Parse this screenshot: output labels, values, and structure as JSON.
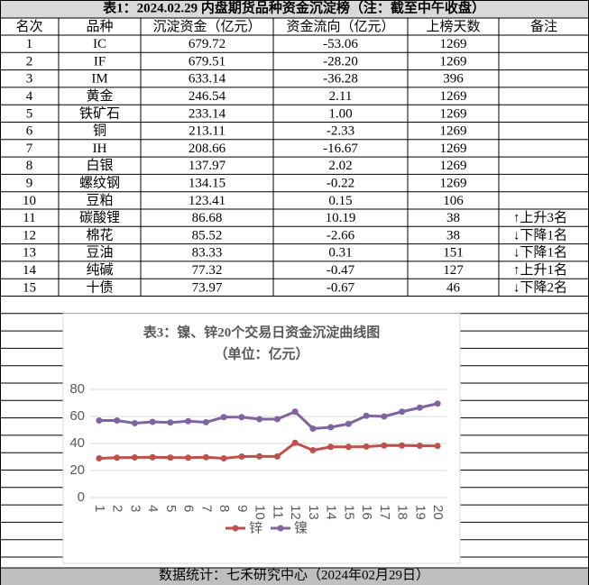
{
  "header": {
    "title": "表1：2024.02.29 内盘期货品种资金沉淀榜（注：截至中午收盘）"
  },
  "table": {
    "columns": [
      "名次",
      "品种",
      "沉淀资金（亿元）",
      "资金流向（亿元）",
      "上榜天数",
      "备注"
    ],
    "rows": [
      [
        "1",
        "IC",
        "679.72",
        "-53.06",
        "1269",
        null
      ],
      [
        "2",
        "IF",
        "679.51",
        "-28.20",
        "1269",
        null
      ],
      [
        "3",
        "IM",
        "633.14",
        "-36.28",
        "396",
        null
      ],
      [
        "4",
        "黄金",
        "246.54",
        "2.11",
        "1269",
        null
      ],
      [
        "5",
        "铁矿石",
        "233.14",
        "1.00",
        "1269",
        null
      ],
      [
        "6",
        "铜",
        "213.11",
        "-2.33",
        "1269",
        null
      ],
      [
        "7",
        "IH",
        "208.66",
        "-16.67",
        "1269",
        null
      ],
      [
        "8",
        "白银",
        "137.97",
        "2.02",
        "1269",
        null
      ],
      [
        "9",
        "螺纹钢",
        "134.15",
        "-0.22",
        "1269",
        null
      ],
      [
        "10",
        "豆粕",
        "123.41",
        "0.15",
        "106",
        null
      ],
      [
        "11",
        "碳酸锂",
        "86.68",
        "10.19",
        "38",
        "↑上升3名"
      ],
      [
        "12",
        "棉花",
        "85.52",
        "-2.66",
        "38",
        "↓下降1名"
      ],
      [
        "13",
        "豆油",
        "83.33",
        "0.31",
        "151",
        "↓下降1名"
      ],
      [
        "14",
        "纯碱",
        "77.32",
        "-0.47",
        "127",
        "↑上升1名"
      ],
      [
        "15",
        "十债",
        "73.97",
        "-0.67",
        "46",
        "↓下降2名"
      ]
    ]
  },
  "chart_data": {
    "type": "line",
    "title": "表3：镍、锌20个交易日资金沉淀曲线图",
    "subtitle": "（单位：亿元）",
    "categories": [
      1,
      2,
      3,
      4,
      5,
      6,
      7,
      8,
      9,
      10,
      11,
      12,
      13,
      14,
      15,
      16,
      17,
      18,
      19,
      20
    ],
    "series": [
      {
        "name": "锌",
        "color": "#c0504d",
        "values": [
          29,
          29.5,
          29.7,
          29.8,
          29.6,
          29.5,
          29.8,
          29,
          30.3,
          30.5,
          30.4,
          40.5,
          35,
          37.5,
          37.5,
          37.7,
          38.5,
          38.5,
          38.3,
          38.2
        ]
      },
      {
        "name": "镍",
        "color": "#8064a2",
        "values": [
          57,
          57,
          55,
          56,
          55.5,
          56.5,
          55.7,
          59.5,
          59.5,
          58,
          58,
          63.5,
          51,
          52,
          54.5,
          60.5,
          60,
          63.5,
          66.5,
          69.5
        ]
      }
    ],
    "ylim": [
      0,
      80
    ],
    "yticks": [
      0,
      20,
      40,
      60,
      80
    ],
    "grid": true,
    "legend": "bottom"
  },
  "footer": {
    "text": "数据统计：七禾研究中心（2024年02月29日）"
  }
}
